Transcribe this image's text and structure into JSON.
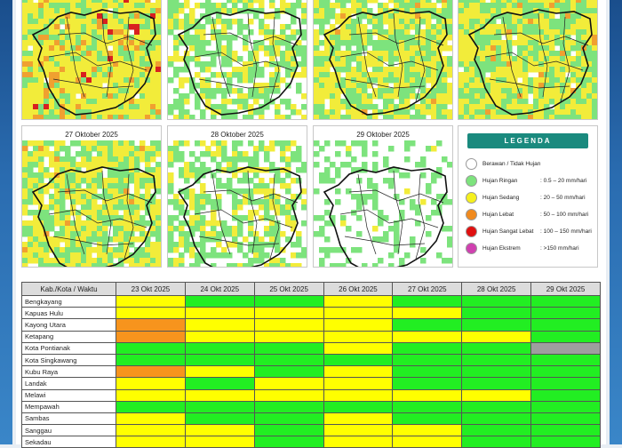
{
  "maps": [
    {
      "title": "",
      "intensity": "heavy"
    },
    {
      "title": "",
      "intensity": "light"
    },
    {
      "title": "",
      "intensity": "moderate"
    },
    {
      "title": "",
      "intensity": "moderate-high"
    },
    {
      "title": "27 Oktober 2025",
      "intensity": "moderate"
    },
    {
      "title": "28 Oktober 2025",
      "intensity": "light"
    },
    {
      "title": "29 Oktober 2025",
      "intensity": "very-light"
    }
  ],
  "legend": {
    "title": "LEGENDA",
    "items": [
      {
        "name": "Berawan / Tidak Hujan",
        "range": "",
        "color": "#ffffff"
      },
      {
        "name": "Hujan Ringan",
        "range": ": 0.5 – 20 mm/hari",
        "color": "#7de37d"
      },
      {
        "name": "Hujan Sedang",
        "range": ": 20 – 50 mm/hari",
        "color": "#f5f01e"
      },
      {
        "name": "Hujan Lebat",
        "range": ": 50 – 100 mm/hari",
        "color": "#f08a1e"
      },
      {
        "name": "Hujan Sangat Lebat",
        "range": ": 100 – 150 mm/hari",
        "color": "#e01010"
      },
      {
        "name": "Hujan Ekstrem",
        "range": ": >150 mm/hari",
        "color": "#d040b0"
      }
    ]
  },
  "table": {
    "header": [
      "Kab./Kota / Waktu",
      "23 Okt 2025",
      "24 Okt 2025",
      "25 Okt 2025",
      "26 Okt 2025",
      "27 Okt 2025",
      "28 Okt 2025",
      "29 Okt 2025"
    ],
    "colors": {
      "G": "#22ee22",
      "Y": "#ffff00",
      "O": "#f7941d",
      "S": "#9e9e9e"
    },
    "rows": [
      {
        "name": "Bengkayang",
        "cells": [
          "Y",
          "G",
          "G",
          "Y",
          "G",
          "G",
          "G"
        ]
      },
      {
        "name": "Kapuas Hulu",
        "cells": [
          "Y",
          "Y",
          "Y",
          "Y",
          "Y",
          "G",
          "G"
        ]
      },
      {
        "name": "Kayong Utara",
        "cells": [
          "O",
          "Y",
          "Y",
          "Y",
          "G",
          "G",
          "G"
        ]
      },
      {
        "name": "Ketapang",
        "cells": [
          "O",
          "Y",
          "Y",
          "Y",
          "Y",
          "Y",
          "G"
        ]
      },
      {
        "name": "Kota Pontianak",
        "cells": [
          "G",
          "G",
          "G",
          "Y",
          "G",
          "G",
          "S"
        ]
      },
      {
        "name": "Kota Singkawang",
        "cells": [
          "G",
          "G",
          "G",
          "G",
          "G",
          "G",
          "G"
        ]
      },
      {
        "name": "Kubu Raya",
        "cells": [
          "O",
          "Y",
          "G",
          "Y",
          "G",
          "G",
          "G"
        ]
      },
      {
        "name": "Landak",
        "cells": [
          "Y",
          "G",
          "Y",
          "Y",
          "G",
          "G",
          "G"
        ]
      },
      {
        "name": "Melawi",
        "cells": [
          "Y",
          "Y",
          "Y",
          "Y",
          "Y",
          "Y",
          "G"
        ]
      },
      {
        "name": "Mempawah",
        "cells": [
          "G",
          "G",
          "G",
          "G",
          "G",
          "G",
          "G"
        ]
      },
      {
        "name": "Sambas",
        "cells": [
          "Y",
          "G",
          "G",
          "Y",
          "G",
          "G",
          "G"
        ]
      },
      {
        "name": "Sanggau",
        "cells": [
          "Y",
          "Y",
          "G",
          "Y",
          "Y",
          "G",
          "G"
        ]
      },
      {
        "name": "Sekadau",
        "cells": [
          "Y",
          "Y",
          "G",
          "Y",
          "Y",
          "G",
          "G"
        ]
      }
    ]
  }
}
